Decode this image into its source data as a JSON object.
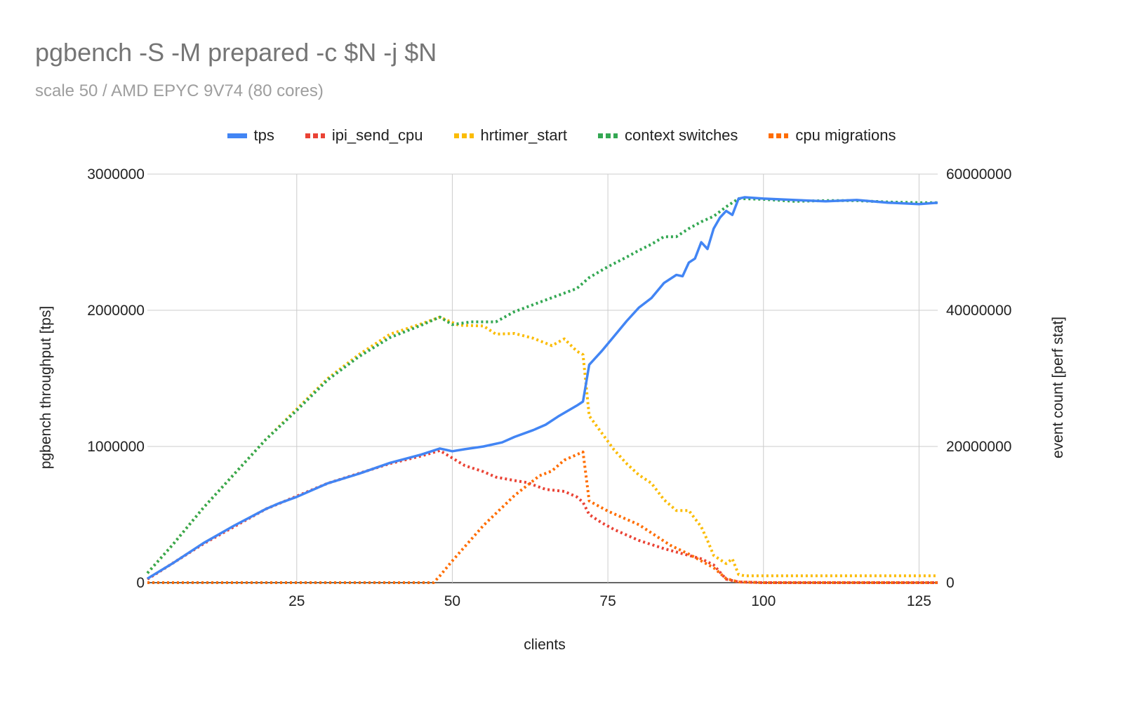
{
  "chart_data": {
    "type": "line",
    "title": "pgbench -S -M prepared -c $N -j $N",
    "subtitle": "scale 50 / AMD EPYC 9V74 (80 cores)",
    "xlabel": "clients",
    "ylabel": "pgbench throughput [tps]",
    "y2label": "event count [perf stat]",
    "xlim": [
      1,
      128
    ],
    "ylim": [
      0,
      3000000
    ],
    "y2lim": [
      0,
      60000000
    ],
    "x_ticks": [
      "25",
      "50",
      "75",
      "100",
      "125"
    ],
    "y_ticks": [
      "0",
      "1000000",
      "2000000",
      "3000000"
    ],
    "y2_ticks": [
      "0",
      "20000000",
      "40000000",
      "60000000"
    ],
    "grid": true,
    "legend_position": "top",
    "series": [
      {
        "name": "tps",
        "axis": "left",
        "style": "solid",
        "color": "#4285f4",
        "points": [
          [
            1,
            30000
          ],
          [
            5,
            140000
          ],
          [
            10,
            290000
          ],
          [
            15,
            420000
          ],
          [
            20,
            540000
          ],
          [
            22,
            580000
          ],
          [
            25,
            630000
          ],
          [
            30,
            730000
          ],
          [
            35,
            800000
          ],
          [
            40,
            880000
          ],
          [
            45,
            940000
          ],
          [
            48,
            985000
          ],
          [
            50,
            965000
          ],
          [
            52,
            980000
          ],
          [
            55,
            1000000
          ],
          [
            58,
            1030000
          ],
          [
            60,
            1070000
          ],
          [
            63,
            1120000
          ],
          [
            65,
            1160000
          ],
          [
            67,
            1220000
          ],
          [
            70,
            1300000
          ],
          [
            71,
            1330000
          ],
          [
            72,
            1600000
          ],
          [
            74,
            1700000
          ],
          [
            76,
            1810000
          ],
          [
            78,
            1920000
          ],
          [
            80,
            2020000
          ],
          [
            82,
            2090000
          ],
          [
            84,
            2200000
          ],
          [
            86,
            2260000
          ],
          [
            87,
            2250000
          ],
          [
            88,
            2350000
          ],
          [
            89,
            2380000
          ],
          [
            90,
            2500000
          ],
          [
            91,
            2450000
          ],
          [
            92,
            2600000
          ],
          [
            93,
            2680000
          ],
          [
            94,
            2730000
          ],
          [
            95,
            2700000
          ],
          [
            96,
            2820000
          ],
          [
            97,
            2830000
          ],
          [
            100,
            2820000
          ],
          [
            105,
            2810000
          ],
          [
            110,
            2800000
          ],
          [
            115,
            2810000
          ],
          [
            120,
            2790000
          ],
          [
            125,
            2780000
          ],
          [
            128,
            2790000
          ]
        ]
      },
      {
        "name": "ipi_send_cpu",
        "axis": "right",
        "style": "dotted",
        "color": "#ea4335",
        "points": [
          [
            1,
            500000
          ],
          [
            10,
            5700000
          ],
          [
            20,
            10800000
          ],
          [
            30,
            14600000
          ],
          [
            40,
            17500000
          ],
          [
            45,
            18600000
          ],
          [
            48,
            19400000
          ],
          [
            52,
            17200000
          ],
          [
            55,
            16300000
          ],
          [
            57,
            15500000
          ],
          [
            60,
            15000000
          ],
          [
            62,
            14700000
          ],
          [
            65,
            13700000
          ],
          [
            68,
            13400000
          ],
          [
            70,
            12600000
          ],
          [
            71,
            11800000
          ],
          [
            72,
            10000000
          ],
          [
            74,
            8800000
          ],
          [
            76,
            7800000
          ],
          [
            80,
            6200000
          ],
          [
            84,
            5000000
          ],
          [
            88,
            4000000
          ],
          [
            90,
            3500000
          ],
          [
            92,
            2600000
          ],
          [
            94,
            500000
          ],
          [
            96,
            100000
          ],
          [
            100,
            0
          ],
          [
            128,
            0
          ]
        ]
      },
      {
        "name": "hrtimer_start",
        "axis": "right",
        "style": "dotted",
        "color": "#fbbc04",
        "points": [
          [
            1,
            1400000
          ],
          [
            5,
            5500000
          ],
          [
            10,
            11000000
          ],
          [
            15,
            16000000
          ],
          [
            20,
            21000000
          ],
          [
            25,
            25500000
          ],
          [
            30,
            30000000
          ],
          [
            35,
            33500000
          ],
          [
            40,
            36500000
          ],
          [
            45,
            38000000
          ],
          [
            48,
            39000000
          ],
          [
            51,
            37800000
          ],
          [
            55,
            37700000
          ],
          [
            57,
            36500000
          ],
          [
            60,
            36600000
          ],
          [
            63,
            35900000
          ],
          [
            66,
            34800000
          ],
          [
            68,
            35800000
          ],
          [
            70,
            34000000
          ],
          [
            71,
            33500000
          ],
          [
            72,
            24500000
          ],
          [
            74,
            22000000
          ],
          [
            76,
            19500000
          ],
          [
            78,
            17500000
          ],
          [
            80,
            15800000
          ],
          [
            82,
            14600000
          ],
          [
            84,
            12200000
          ],
          [
            86,
            10600000
          ],
          [
            88,
            10600000
          ],
          [
            90,
            8200000
          ],
          [
            91,
            6200000
          ],
          [
            92,
            4000000
          ],
          [
            94,
            2800000
          ],
          [
            95,
            3500000
          ],
          [
            96,
            1200000
          ],
          [
            97,
            1000000
          ],
          [
            128,
            1000000
          ]
        ]
      },
      {
        "name": "context switches",
        "axis": "right",
        "style": "dotted",
        "color": "#34a853",
        "points": [
          [
            1,
            1400000
          ],
          [
            5,
            5500000
          ],
          [
            10,
            11000000
          ],
          [
            15,
            16000000
          ],
          [
            20,
            21000000
          ],
          [
            25,
            25300000
          ],
          [
            30,
            29800000
          ],
          [
            35,
            33200000
          ],
          [
            40,
            36000000
          ],
          [
            45,
            37800000
          ],
          [
            48,
            39000000
          ],
          [
            50,
            37900000
          ],
          [
            53,
            38300000
          ],
          [
            57,
            38300000
          ],
          [
            60,
            39800000
          ],
          [
            65,
            41500000
          ],
          [
            70,
            43200000
          ],
          [
            72,
            44800000
          ],
          [
            75,
            46400000
          ],
          [
            78,
            47800000
          ],
          [
            80,
            48800000
          ],
          [
            82,
            49700000
          ],
          [
            84,
            50800000
          ],
          [
            86,
            50800000
          ],
          [
            88,
            52000000
          ],
          [
            90,
            53000000
          ],
          [
            92,
            53800000
          ],
          [
            94,
            55200000
          ],
          [
            96,
            56400000
          ],
          [
            100,
            56300000
          ],
          [
            105,
            56000000
          ],
          [
            110,
            56100000
          ],
          [
            115,
            56100000
          ],
          [
            120,
            55900000
          ],
          [
            125,
            55800000
          ],
          [
            128,
            55800000
          ]
        ]
      },
      {
        "name": "cpu migrations",
        "axis": "right",
        "style": "dotted",
        "color": "#ff6d01",
        "points": [
          [
            1,
            0
          ],
          [
            47,
            0
          ],
          [
            48,
            1000000
          ],
          [
            50,
            3200000
          ],
          [
            55,
            8400000
          ],
          [
            60,
            12800000
          ],
          [
            64,
            15700000
          ],
          [
            66,
            16400000
          ],
          [
            68,
            18000000
          ],
          [
            70,
            18800000
          ],
          [
            71,
            19200000
          ],
          [
            72,
            12000000
          ],
          [
            75,
            10500000
          ],
          [
            80,
            8500000
          ],
          [
            85,
            5500000
          ],
          [
            88,
            4200000
          ],
          [
            90,
            3200000
          ],
          [
            92,
            2200000
          ],
          [
            94,
            600000
          ],
          [
            96,
            100000
          ],
          [
            100,
            0
          ],
          [
            128,
            0
          ]
        ]
      }
    ]
  }
}
